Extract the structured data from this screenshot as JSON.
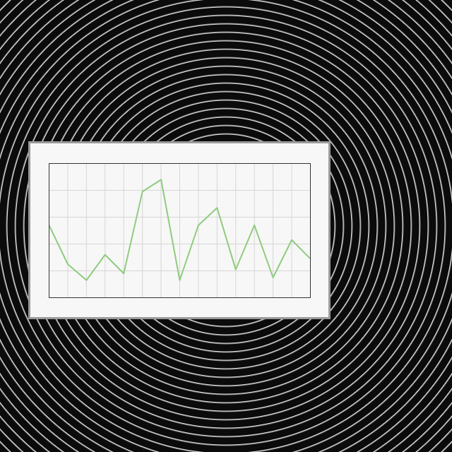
{
  "chart_data": {
    "type": "line",
    "x": [
      1,
      2,
      3,
      4,
      5,
      6,
      7,
      8,
      9,
      10,
      11,
      12,
      13,
      14,
      15
    ],
    "values": [
      54,
      25,
      13,
      32,
      18,
      79,
      88,
      13,
      54,
      67,
      21,
      54,
      15,
      43,
      29
    ],
    "color": "#8fcc7f",
    "xlim": [
      1,
      15
    ],
    "xticks": [
      1,
      2,
      3,
      4,
      5,
      6,
      7,
      8,
      9,
      10,
      11,
      12,
      13,
      14,
      15
    ],
    "ylim": [
      0,
      100
    ],
    "yticks": [
      0,
      20,
      40,
      60,
      80,
      100
    ],
    "grid": true,
    "tick_labels": false
  }
}
